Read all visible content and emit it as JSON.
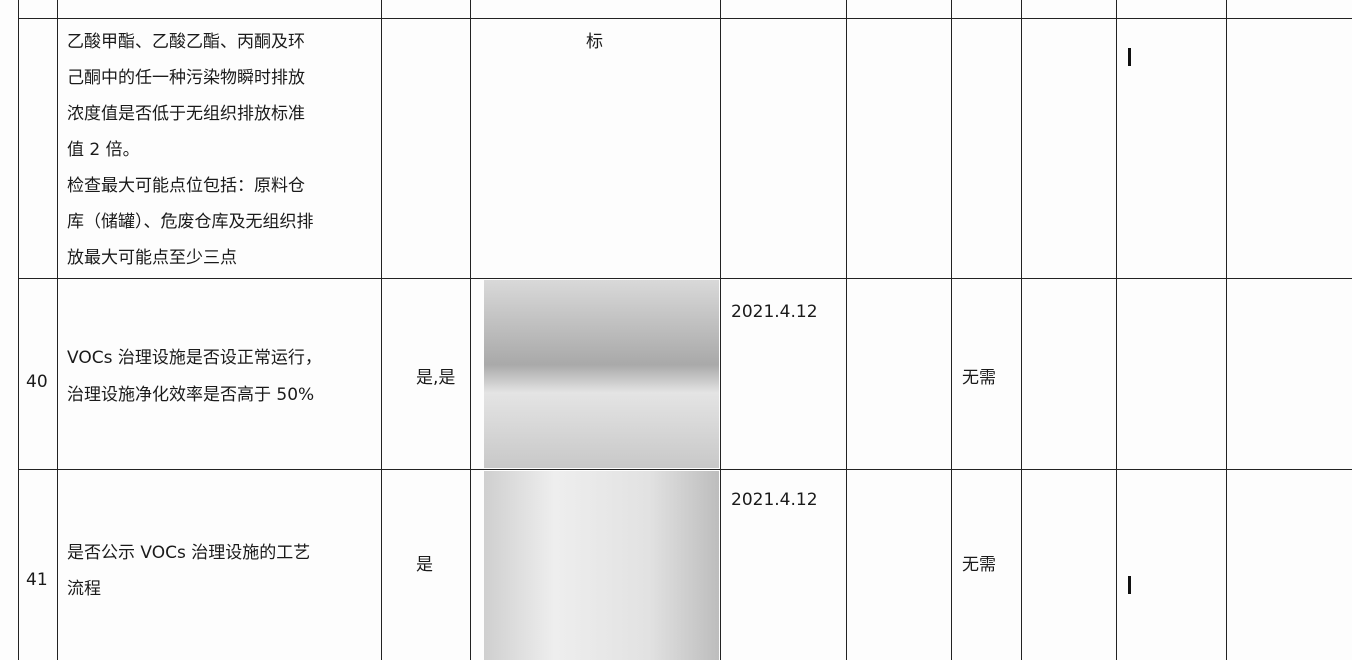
{
  "table": {
    "rows": [
      {
        "item": [
          "乙酸甲酯、乙酸乙酯、丙酮及环",
          "己酮中的任一种污染物瞬时排放",
          "浓度值是否低于无组织排放标准",
          "值 2 倍。",
          "检查最大可能点位包括：原料仓",
          "库（储罐）、危废仓库及无组织排",
          "放最大可能点至少三点"
        ],
        "photo_caption": "标"
      },
      {
        "number": "40",
        "item": [
          "VOCs 治理设施是否设正常运行，",
          "治理设施净化效率是否高于 50%"
        ],
        "result": "是,是",
        "date": "2021.4.12",
        "note": "无需"
      },
      {
        "number": "41",
        "item": [
          "是否公示 VOCs 治理设施的工艺",
          "流程"
        ],
        "result": "是",
        "date": "2021.4.12",
        "note": "无需"
      }
    ]
  }
}
